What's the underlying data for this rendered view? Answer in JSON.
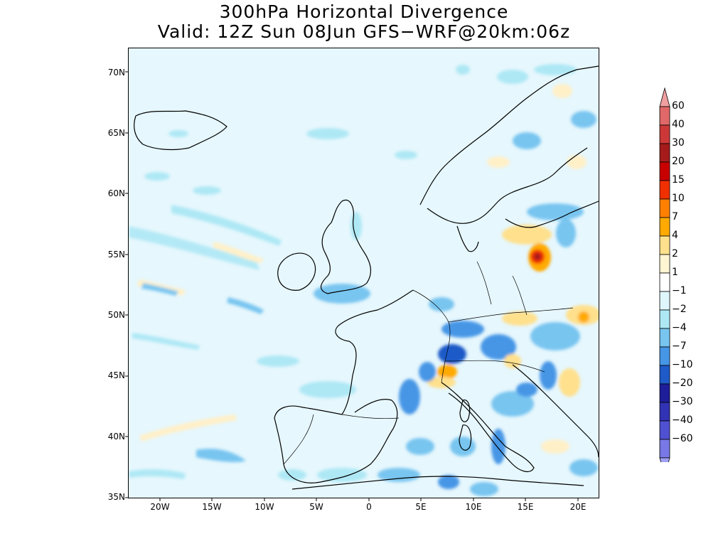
{
  "title": {
    "line1": "300hPa Horizontal Divergence",
    "line2": "Valid: 12Z Sun 08Jun GFS−WRF@20km:06z"
  },
  "map": {
    "lon_range": [
      -23,
      22
    ],
    "lat_range": [
      35,
      72
    ],
    "lat_ticks": [
      "35N",
      "40N",
      "45N",
      "50N",
      "55N",
      "60N",
      "65N",
      "70N"
    ],
    "lon_ticks": [
      "20W",
      "15W",
      "10W",
      "5W",
      "0",
      "5E",
      "10E",
      "15E",
      "20E"
    ]
  },
  "colorbar": {
    "labels": [
      "60",
      "40",
      "30",
      "20",
      "15",
      "10",
      "7",
      "4",
      "2",
      "1",
      "−1",
      "−2",
      "−4",
      "−7",
      "−10",
      "−20",
      "−30",
      "−40",
      "−60"
    ],
    "colors": [
      "#f0a0a0",
      "#e06868",
      "#cc3838",
      "#a51b1b",
      "#c80000",
      "#f03000",
      "#ff8000",
      "#ffaa00",
      "#ffe08c",
      "#fff5d2",
      "#ffffff",
      "#dff6fc",
      "#aee8f5",
      "#78c5f0",
      "#4696e6",
      "#1e5ac8",
      "#1e1e9a",
      "#3232b4",
      "#5050d2",
      "#7878e6",
      "#a0a0f5"
    ]
  }
}
